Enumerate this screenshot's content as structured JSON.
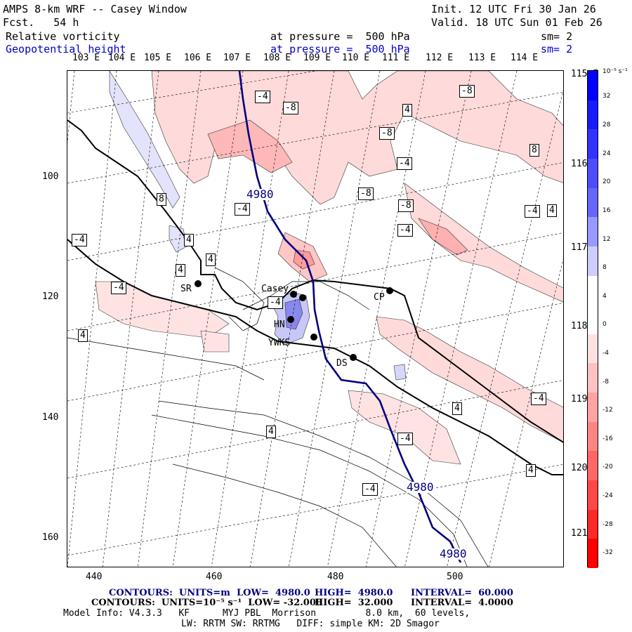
{
  "header": {
    "title": "AMPS 8-km WRF -- Casey Window",
    "fcst": "Fcst.   54 h",
    "init": "Init. 12 UTC Fri 30 Jan 26",
    "valid": "Valid. 18 UTC Sun 01 Feb 26",
    "field1_name": "Relative vorticity",
    "field1_level": "at pressure =  500 hPa",
    "field1_sm": "sm= 2",
    "field2_name": "Geopotential height",
    "field2_level": "at pressure =  500 hPa",
    "field2_sm": "sm= 2"
  },
  "lon_labels": [
    "103 E",
    "104 E",
    "105 E",
    "106 E",
    "107 E",
    "108 E",
    "109 E",
    "110 E",
    "111 E",
    "112 E",
    "113 E",
    "114 E"
  ],
  "lat_labels_right": [
    "115 E",
    "116 E",
    "117 E",
    "118 E",
    "119 E",
    "120 E",
    "121 E"
  ],
  "x_ticks": [
    "440",
    "460",
    "480",
    "500"
  ],
  "y_ticks": [
    "100",
    "120",
    "140",
    "160"
  ],
  "colorbar": {
    "unit": "10⁻⁵ s⁻¹",
    "labels": [
      "32",
      "28",
      "24",
      "20",
      "16",
      "12",
      "8",
      "4",
      "0",
      "-4",
      "-8",
      "-12",
      "-16",
      "-20",
      "-24",
      "-28",
      "-32"
    ],
    "colors": [
      "#0000ff",
      "#1a1aff",
      "#3333ff",
      "#4d4dff",
      "#6666ff",
      "#9999ff",
      "#ccccff",
      "#ffffff",
      "#ffffff",
      "#ffe0e0",
      "#ffc2c2",
      "#ffa3a3",
      "#ff8585",
      "#ff6666",
      "#ff4747",
      "#ff2828",
      "#ff0000"
    ]
  },
  "stations": [
    {
      "name": "Casey"
    },
    {
      "name": "HN"
    },
    {
      "name": "YWKS"
    },
    {
      "name": "DS"
    },
    {
      "name": "CP"
    },
    {
      "name": "SR"
    }
  ],
  "contour_labels": {
    "height": [
      "4980",
      "4980",
      "4980"
    ],
    "vort": [
      "-4",
      "-8",
      "4",
      "-8",
      "-4",
      "-8",
      "-8",
      "-8",
      "-4",
      "-4",
      "8",
      "-4",
      "8",
      "-4",
      "4",
      "4",
      "-4",
      "-4",
      "4",
      "4",
      "-4",
      "4",
      "4",
      "-4",
      "-4",
      "4",
      "4"
    ]
  },
  "footer": {
    "line1_a": "CONTOURS:  UNITS=m  LOW=  4980.0",
    "line1_b": "HIGH=  4980.0",
    "line1_c": "INTERVAL=  60.000",
    "line2_a": "CONTOURS:  UNITS=10⁻⁵ s⁻¹  LOW= -32.000",
    "line2_b": "HIGH=  32.000",
    "line2_c": "INTERVAL=  4.0000",
    "line3": "Model Info: V4.3.3   KF      MYJ PBL  Morrison         8.0 km,  60 levels,",
    "line4": "LW: RRTM SW: RRTMG   DIFF: simple KM: 2D Smagor"
  }
}
